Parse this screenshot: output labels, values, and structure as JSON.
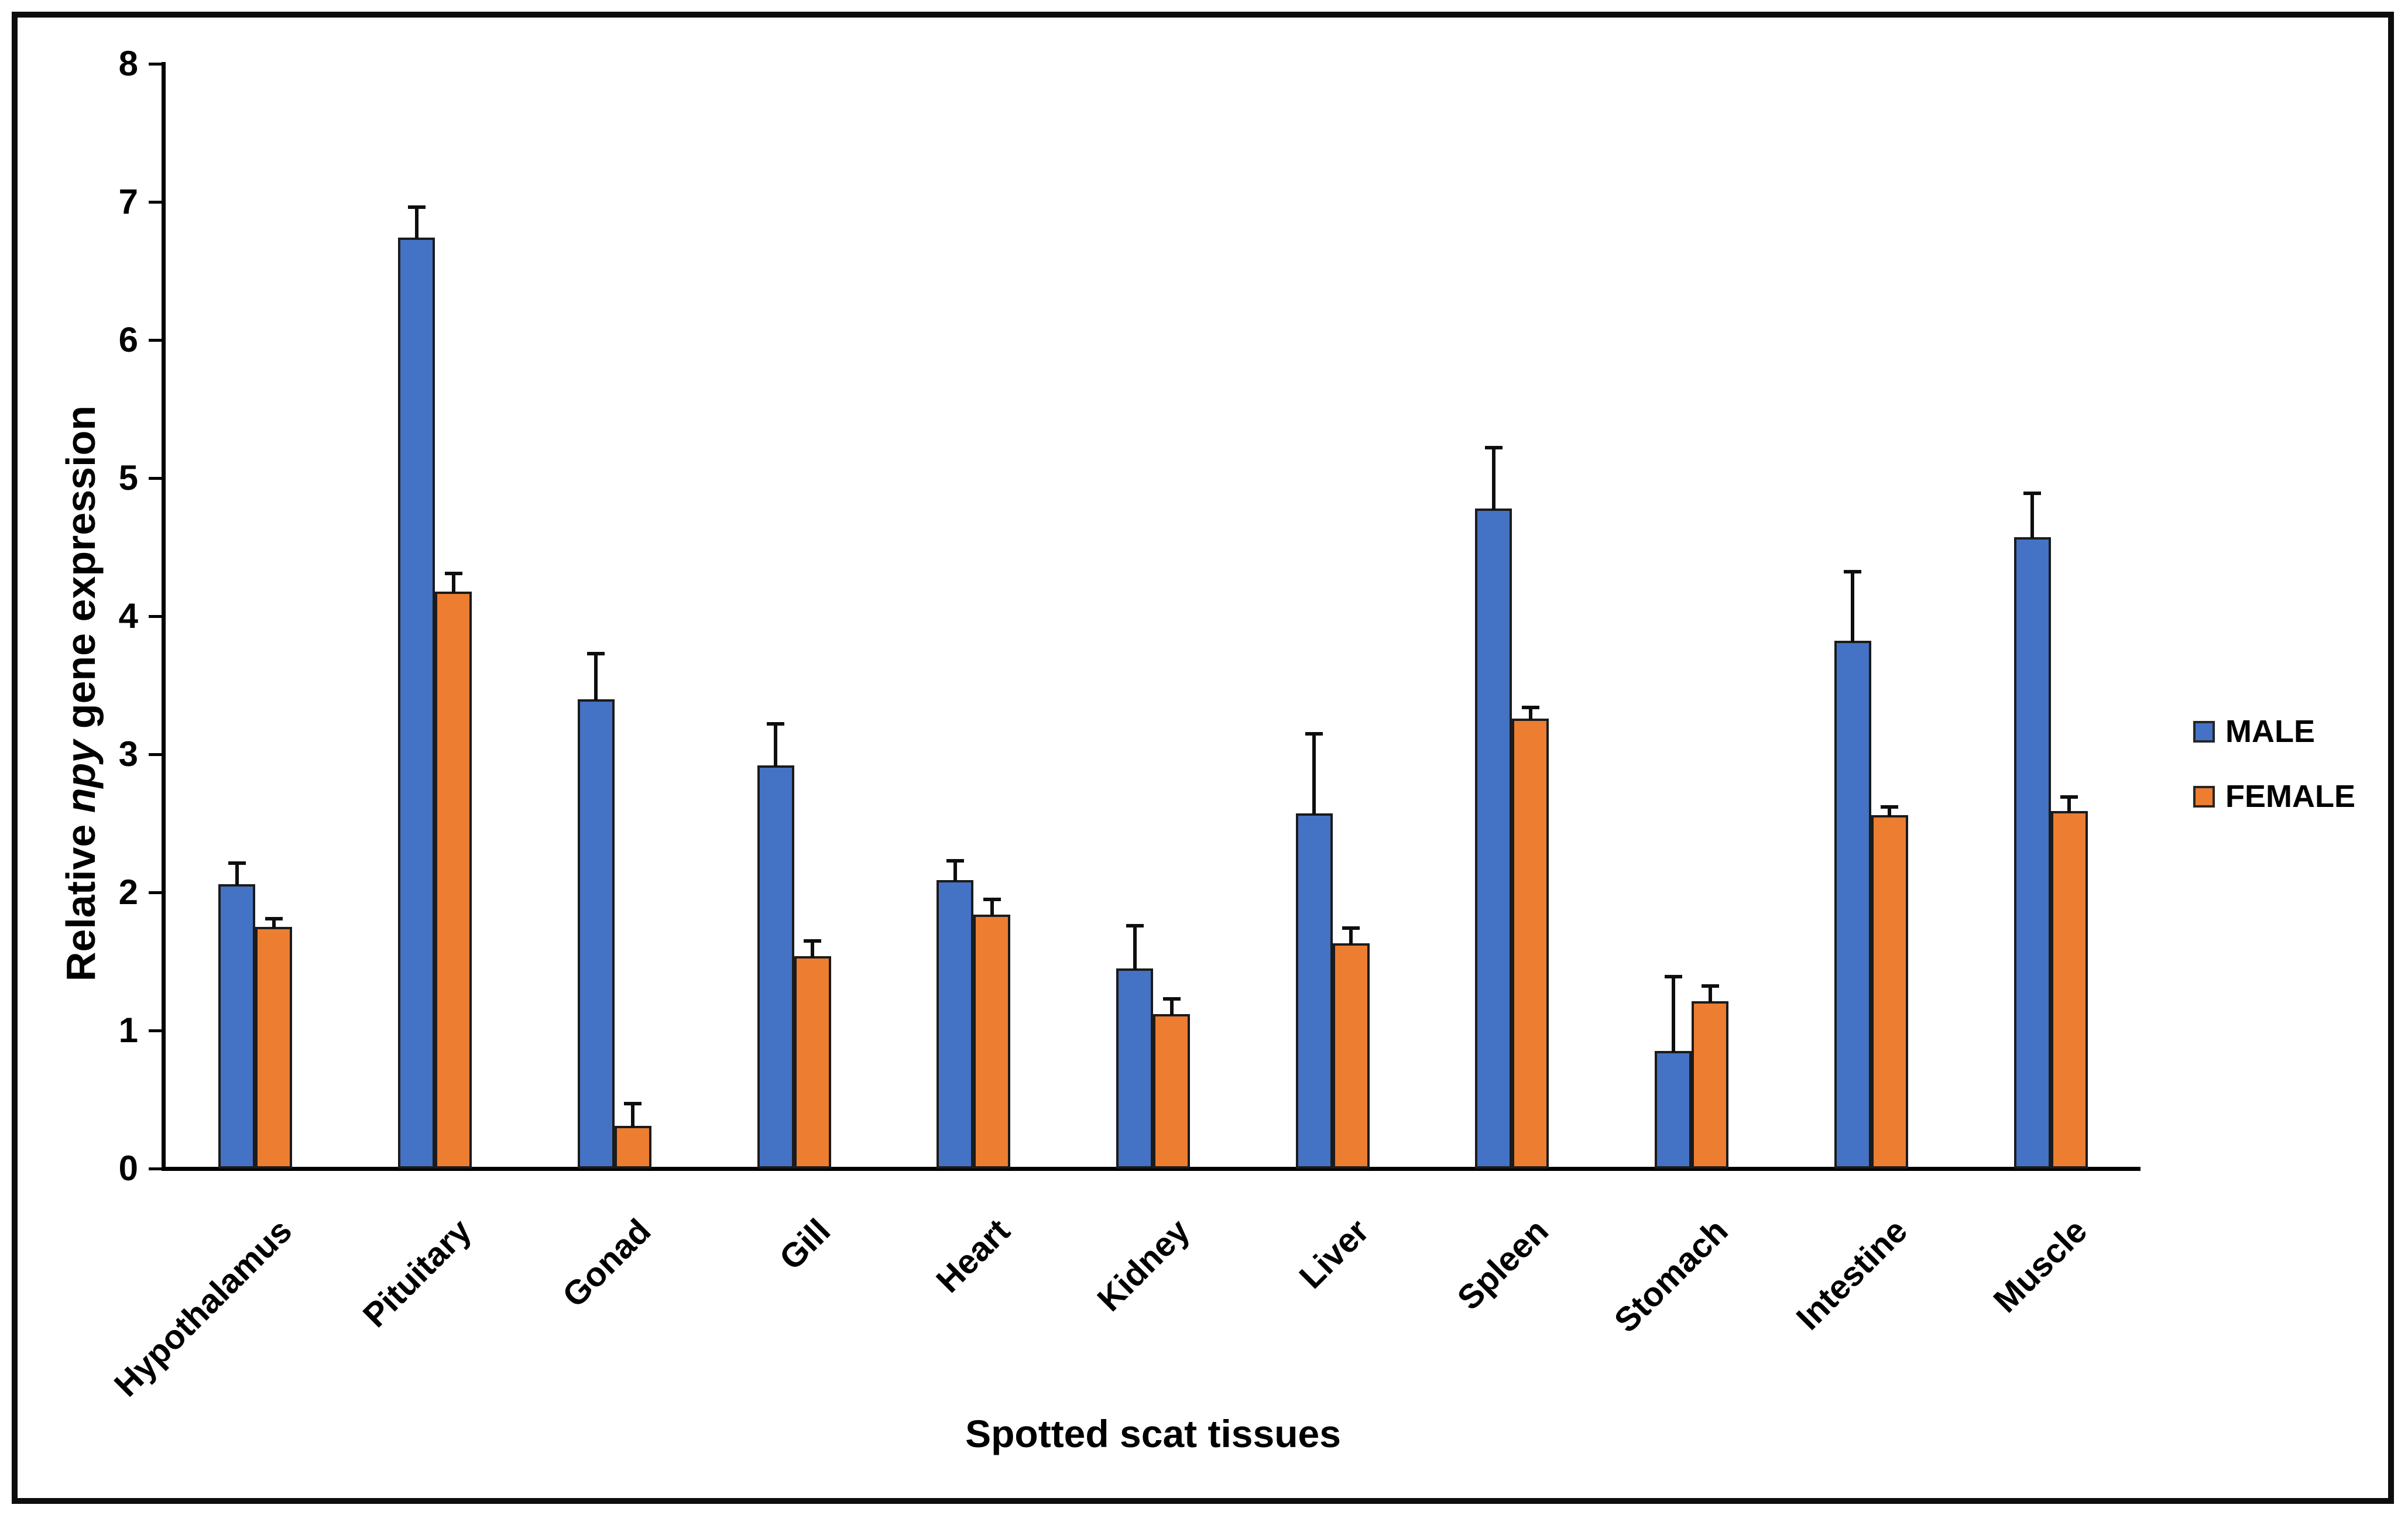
{
  "chart_data": {
    "type": "bar",
    "title": "",
    "xlabel": "Spotted scat tissues",
    "ylabel": "Relative npy gene expression",
    "ylabel_parts": {
      "prefix": "Relative ",
      "italic": "npy",
      "suffix": " gene expression"
    },
    "ylim": [
      0,
      8
    ],
    "yticks": [
      0,
      1,
      2,
      3,
      4,
      5,
      6,
      7,
      8
    ],
    "grid": false,
    "legend_position": "right",
    "bar_outline_color": "#1b1b1b",
    "error_bars": "upper, black caps",
    "categories": [
      "Hypothalamus",
      "Pituitary",
      "Gonad",
      "Gill",
      "Heart",
      "Kidney",
      "Liver",
      "Spleen",
      "Stomach",
      "Intestine",
      "Muscle"
    ],
    "series": [
      {
        "name": "MALE",
        "color": "#4472C4",
        "values": [
          2.06,
          6.74,
          3.4,
          2.92,
          2.09,
          1.45,
          2.57,
          4.78,
          0.85,
          3.82,
          4.57
        ],
        "errors": [
          0.15,
          0.22,
          0.33,
          0.3,
          0.14,
          0.31,
          0.58,
          0.44,
          0.54,
          0.5,
          0.32
        ]
      },
      {
        "name": "FEMALE",
        "color": "#ED7D31",
        "values": [
          1.75,
          4.18,
          0.31,
          1.54,
          1.84,
          1.12,
          1.63,
          3.26,
          1.21,
          2.56,
          2.59
        ],
        "errors": [
          0.06,
          0.13,
          0.16,
          0.11,
          0.11,
          0.11,
          0.11,
          0.08,
          0.11,
          0.06,
          0.1
        ]
      }
    ]
  }
}
